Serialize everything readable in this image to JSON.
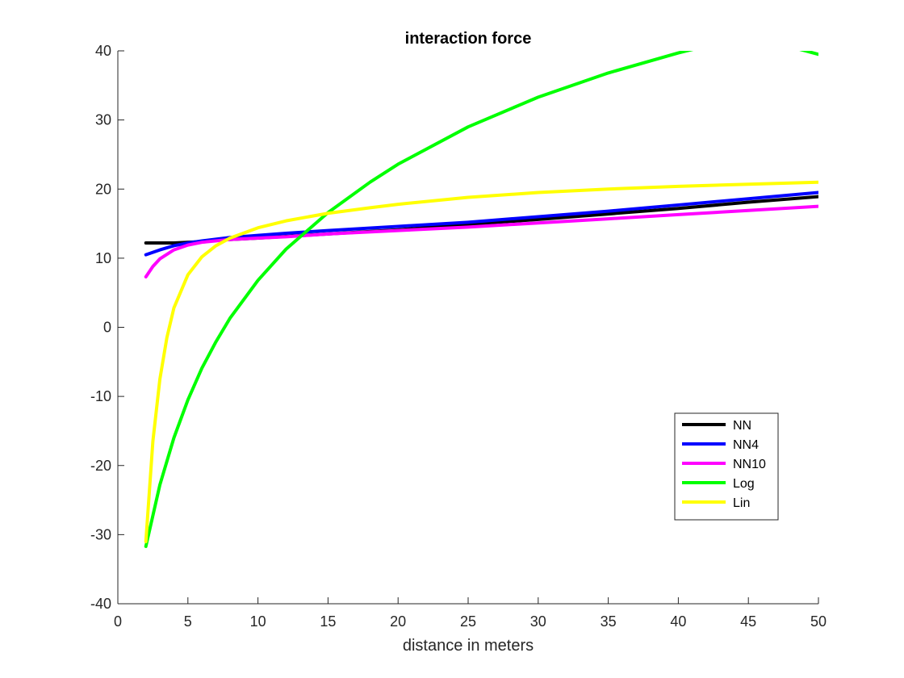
{
  "chart_data": {
    "type": "line",
    "title": "interaction force",
    "xlabel": "distance in meters",
    "ylabel": "",
    "xlim": [
      0,
      50
    ],
    "ylim": [
      -40,
      40
    ],
    "xticks": [
      0,
      5,
      10,
      15,
      20,
      25,
      30,
      35,
      40,
      45,
      50
    ],
    "yticks": [
      -40,
      -30,
      -20,
      -10,
      0,
      10,
      20,
      30,
      40
    ],
    "legend_position": "bottom-right",
    "grid": false,
    "series": [
      {
        "name": "NN",
        "color": "#000000",
        "x": [
          2,
          4,
          6,
          8,
          10,
          15,
          20,
          25,
          30,
          35,
          40,
          45,
          50
        ],
        "y": [
          12.2,
          12.2,
          12.4,
          12.7,
          12.9,
          13.5,
          14.1,
          14.9,
          15.6,
          16.4,
          17.2,
          18.1,
          18.9
        ]
      },
      {
        "name": "NN4",
        "color": "#0000ff",
        "x": [
          2,
          3,
          4,
          5,
          6,
          8,
          10,
          12,
          15,
          20,
          25,
          30,
          35,
          40,
          45,
          50
        ],
        "y": [
          10.5,
          11.2,
          11.8,
          12.2,
          12.5,
          13.0,
          13.3,
          13.6,
          14.0,
          14.6,
          15.2,
          16.0,
          16.8,
          17.7,
          18.6,
          19.5
        ]
      },
      {
        "name": "NN10",
        "color": "#ff00ff",
        "x": [
          2,
          2.5,
          3,
          4,
          5,
          6,
          8,
          10,
          12,
          15,
          20,
          25,
          30,
          35,
          40,
          45,
          50
        ],
        "y": [
          7.3,
          8.8,
          9.9,
          11.2,
          11.9,
          12.3,
          12.7,
          12.9,
          13.1,
          13.5,
          14.0,
          14.5,
          15.1,
          15.7,
          16.3,
          16.9,
          17.5
        ]
      },
      {
        "name": "Log",
        "color": "#00ff00",
        "x": [
          2,
          3,
          4,
          5,
          6,
          7,
          8,
          10,
          12,
          15,
          18,
          20,
          25,
          30,
          35,
          40,
          45,
          50
        ],
        "y": [
          -31.7,
          -22.8,
          -16.0,
          -10.5,
          -5.9,
          -2.1,
          1.3,
          6.8,
          11.3,
          16.6,
          21.0,
          23.6,
          29.0,
          33.3,
          36.8,
          39.7,
          42.2,
          39.5
        ]
      },
      {
        "name": "Lin",
        "color": "#ffff00",
        "x": [
          2,
          2.5,
          3,
          3.5,
          4,
          5,
          6,
          7,
          8,
          10,
          12,
          15,
          18,
          20,
          25,
          30,
          35,
          40,
          45,
          50
        ],
        "y": [
          -31.0,
          -16.5,
          -7.5,
          -1.5,
          2.8,
          7.6,
          10.2,
          11.8,
          12.9,
          14.4,
          15.4,
          16.5,
          17.3,
          17.8,
          18.8,
          19.5,
          20.0,
          20.4,
          20.7,
          21.0
        ]
      }
    ]
  }
}
